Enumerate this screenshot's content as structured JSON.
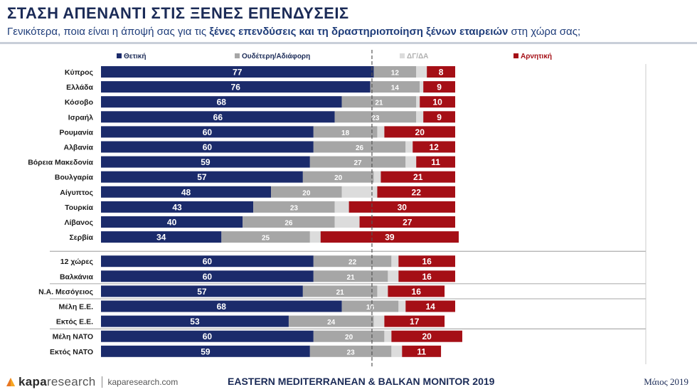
{
  "header": {
    "title": "ΣΤΑΣΗ ΑΠΕΝΑΝΤΙ ΣΤΙΣ ΞΕΝΕΣ ΕΠΕΝΔΥΣΕΙΣ",
    "subtitle_pre": "Γενικότερα, ποια είναι η άποψή σας για τις ",
    "subtitle_bold": "ξένες επενδύσεις και τη δραστηριοποίηση ξένων εταιρειών",
    "subtitle_post": " στη χώρα σας;"
  },
  "colors": {
    "positive": "#1b2b6b",
    "neutral": "#a6a6a6",
    "dk": "#dcdcdc",
    "negative": "#a50f16"
  },
  "chart_data": {
    "type": "bar",
    "stacked": true,
    "orientation": "horizontal",
    "legend_position": "top",
    "series": [
      {
        "name": "Θετική",
        "key": "positive",
        "values": [
          77,
          76,
          68,
          66,
          60,
          60,
          59,
          57,
          48,
          43,
          40,
          34,
          60,
          60,
          57,
          68,
          53,
          60,
          59
        ]
      },
      {
        "name": "Ουδέτερη/Αδιάφορη",
        "key": "neutral",
        "values": [
          12,
          14,
          21,
          23,
          18,
          26,
          27,
          20,
          20,
          23,
          26,
          25,
          22,
          21,
          21,
          16,
          24,
          20,
          23
        ]
      },
      {
        "name": "ΔΓ/ΔΑ",
        "key": "dk",
        "values": [
          3,
          1,
          1,
          2,
          2,
          2,
          3,
          2,
          10,
          4,
          7,
          3,
          2,
          3,
          3,
          2,
          3,
          2,
          3
        ]
      },
      {
        "name": "Αρνητική",
        "key": "negative",
        "values": [
          8,
          9,
          10,
          9,
          20,
          12,
          11,
          21,
          22,
          30,
          27,
          39,
          16,
          16,
          16,
          14,
          17,
          20,
          11
        ]
      }
    ],
    "groups": [
      {
        "categories": [
          "Κύπρος",
          "Ελλάδα",
          "Κόσοβο",
          "Ισραήλ",
          "Ρουμανία",
          "Αλβανία",
          "Βόρεια Μακεδονία",
          "Βουλγαρία",
          "Αίγυπτος",
          "Τουρκία",
          "Λίβανος",
          "Σερβία"
        ]
      },
      {
        "categories": [
          "12 χώρες",
          "Βαλκάνια",
          "Ν.Α. Μεσόγειος",
          "Μέλη Ε.Ε.",
          "Εκτός Ε.Ε.",
          "Μέλη ΝΑΤΟ",
          "Εκτός ΝΑΤΟ"
        ]
      }
    ],
    "dk_labels_shown": false
  },
  "footer": {
    "brand_main": "kapa",
    "brand_thin": "research",
    "site": "kaparesearch.com",
    "center": "EASTERN MEDITERRANEAN & BALKAN MONITOR 2019",
    "date": "Μάιος 2019"
  }
}
